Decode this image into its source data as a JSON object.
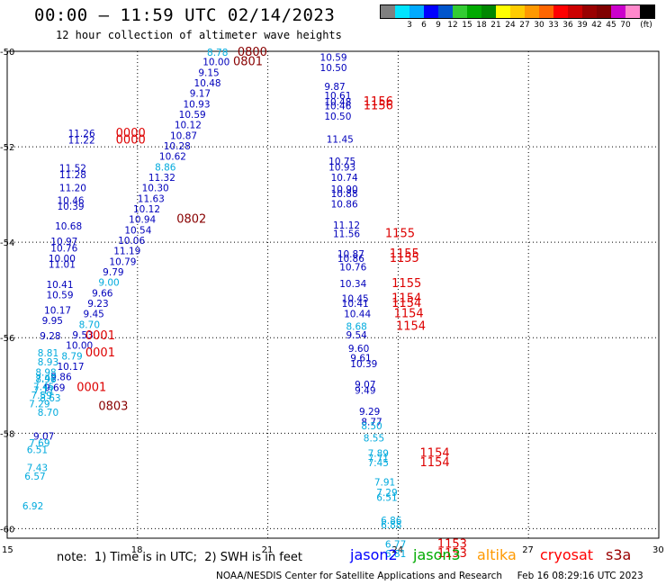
{
  "title": "00:00 – 11:59 UTC 02/14/2023",
  "subtitle": "12 hour collection of altimeter wave heights",
  "legend": {
    "unit": "(ft)",
    "colors": [
      "#808080",
      "#00e5ff",
      "#00aaff",
      "#0000ff",
      "#0055cc",
      "#33cc33",
      "#00aa00",
      "#008800",
      "#ffff00",
      "#ffcc00",
      "#ff9900",
      "#ff6600",
      "#ff0000",
      "#cc0000",
      "#990000",
      "#800000",
      "#cc00cc",
      "#ff88cc",
      "#000000"
    ],
    "labels": [
      "3",
      "6",
      "9",
      "12",
      "15",
      "18",
      "21",
      "24",
      "27",
      "30",
      "33",
      "36",
      "39",
      "42",
      "45",
      "70"
    ]
  },
  "footnote": "note:  1) Time is in UTC;  2) SWH is in feet",
  "satellites": [
    {
      "name": "jason2",
      "color": "#0000ff"
    },
    {
      "name": "jason3",
      "color": "#00aa00"
    },
    {
      "name": "altika",
      "color": "#ff9900"
    },
    {
      "name": "cryosat",
      "color": "#ff0000"
    },
    {
      "name": "s3a",
      "color": "#990000"
    }
  ],
  "credit": "NOAA/NESDIS Center for Satellite Applications and Research     Feb 16 08:29:16 UTC 2023",
  "chart_data": {
    "type": "scatter",
    "x_ticks": [
      15,
      18,
      21,
      24,
      27,
      30
    ],
    "y_ticks": [
      -50,
      -52,
      -54,
      -56,
      -58,
      -60
    ],
    "xlim": [
      15,
      30
    ],
    "ylim": [
      -60.2,
      -50
    ],
    "grid": true,
    "colors": {
      "lb": "#00aadd",
      "b": "#0000bb",
      "r": "#dd0000",
      "dr": "#880000"
    },
    "points": [
      {
        "lon": 19.6,
        "lat": -50.02,
        "label": "8.78",
        "c": "lb"
      },
      {
        "lon": 20.3,
        "lat": -50.02,
        "label": "0800",
        "c": "dr"
      },
      {
        "lon": 19.5,
        "lat": -50.22,
        "label": "10.00",
        "c": "b"
      },
      {
        "lon": 20.2,
        "lat": -50.22,
        "label": "0801",
        "c": "dr"
      },
      {
        "lon": 19.4,
        "lat": -50.44,
        "label": "9.15",
        "c": "b"
      },
      {
        "lon": 19.3,
        "lat": -50.66,
        "label": "10.48",
        "c": "b"
      },
      {
        "lon": 19.2,
        "lat": -50.88,
        "label": "9.17",
        "c": "b"
      },
      {
        "lon": 19.05,
        "lat": -51.1,
        "label": "10.93",
        "c": "b"
      },
      {
        "lon": 18.95,
        "lat": -51.32,
        "label": "10.59",
        "c": "b"
      },
      {
        "lon": 18.85,
        "lat": -51.54,
        "label": "10.12",
        "c": "b"
      },
      {
        "lon": 18.75,
        "lat": -51.76,
        "label": "10.87",
        "c": "b"
      },
      {
        "lon": 18.6,
        "lat": -51.98,
        "label": "10.28",
        "c": "b"
      },
      {
        "lon": 18.5,
        "lat": -52.2,
        "label": "10.62",
        "c": "b"
      },
      {
        "lon": 18.4,
        "lat": -52.42,
        "label": "8.86",
        "c": "lb"
      },
      {
        "lon": 18.25,
        "lat": -52.64,
        "label": "11.32",
        "c": "b"
      },
      {
        "lon": 18.1,
        "lat": -52.86,
        "label": "10.30",
        "c": "b"
      },
      {
        "lon": 18.0,
        "lat": -53.08,
        "label": "11.63",
        "c": "b"
      },
      {
        "lon": 17.9,
        "lat": -53.3,
        "label": "10.12",
        "c": "b"
      },
      {
        "lon": 17.8,
        "lat": -53.52,
        "label": "10.94",
        "c": "b"
      },
      {
        "lon": 18.9,
        "lat": -53.52,
        "label": "0802",
        "c": "dr"
      },
      {
        "lon": 17.7,
        "lat": -53.74,
        "label": "10.54",
        "c": "b"
      },
      {
        "lon": 17.55,
        "lat": -53.96,
        "label": "10.06",
        "c": "b"
      },
      {
        "lon": 17.45,
        "lat": -54.18,
        "label": "11.19",
        "c": "b"
      },
      {
        "lon": 17.35,
        "lat": -54.4,
        "label": "10.79",
        "c": "b"
      },
      {
        "lon": 17.2,
        "lat": -54.62,
        "label": "9.79",
        "c": "b"
      },
      {
        "lon": 17.1,
        "lat": -54.84,
        "label": "9.00",
        "c": "lb"
      },
      {
        "lon": 16.95,
        "lat": -55.06,
        "label": "9.66",
        "c": "b"
      },
      {
        "lon": 16.85,
        "lat": -55.28,
        "label": "9.23",
        "c": "b"
      },
      {
        "lon": 16.75,
        "lat": -55.5,
        "label": "9.45",
        "c": "b"
      },
      {
        "lon": 16.65,
        "lat": -55.72,
        "label": "8.70",
        "c": "lb"
      },
      {
        "lon": 16.5,
        "lat": -55.94,
        "label": "9.53",
        "c": "b"
      },
      {
        "lon": 16.35,
        "lat": -56.16,
        "label": "10.00",
        "c": "b"
      },
      {
        "lon": 16.25,
        "lat": -56.38,
        "label": "8.79",
        "c": "lb"
      },
      {
        "lon": 16.15,
        "lat": -56.6,
        "label": "10.17",
        "c": "b"
      },
      {
        "lon": 16.0,
        "lat": -56.82,
        "label": "9.86",
        "c": "b"
      },
      {
        "lon": 15.85,
        "lat": -57.04,
        "label": "9.69",
        "c": "b"
      },
      {
        "lon": 15.75,
        "lat": -57.26,
        "label": "8.63",
        "c": "lb"
      },
      {
        "lon": 15.65,
        "lat": -56.84,
        "label": "7.42",
        "c": "lb"
      },
      {
        "lon": 15.6,
        "lat": -57.02,
        "label": "7.45",
        "c": "lb"
      },
      {
        "lon": 15.55,
        "lat": -57.2,
        "label": "7.59",
        "c": "lb"
      },
      {
        "lon": 15.5,
        "lat": -57.38,
        "label": "7.29",
        "c": "lb"
      },
      {
        "lon": 15.7,
        "lat": -57.56,
        "label": "8.70",
        "c": "lb"
      },
      {
        "lon": 15.6,
        "lat": -58.06,
        "label": "9.07",
        "c": "b"
      },
      {
        "lon": 15.5,
        "lat": -58.2,
        "label": "7.69",
        "c": "lb"
      },
      {
        "lon": 15.45,
        "lat": -58.34,
        "label": "6.51",
        "c": "lb"
      },
      {
        "lon": 15.45,
        "lat": -58.72,
        "label": "7.43",
        "c": "lb"
      },
      {
        "lon": 15.4,
        "lat": -58.9,
        "label": "6.57",
        "c": "lb"
      },
      {
        "lon": 15.35,
        "lat": -59.52,
        "label": "6.92",
        "c": "lb"
      },
      {
        "lon": 16.4,
        "lat": -51.72,
        "label": "11.26",
        "c": "b"
      },
      {
        "lon": 17.5,
        "lat": -51.72,
        "label": "0000",
        "c": "r"
      },
      {
        "lon": 16.4,
        "lat": -51.86,
        "label": "11.22",
        "c": "b"
      },
      {
        "lon": 17.5,
        "lat": -51.86,
        "label": "0000",
        "c": "r"
      },
      {
        "lon": 16.2,
        "lat": -52.44,
        "label": "11.52",
        "c": "b"
      },
      {
        "lon": 16.2,
        "lat": -52.58,
        "label": "11.28",
        "c": "b"
      },
      {
        "lon": 16.2,
        "lat": -52.86,
        "label": "11.20",
        "c": "b"
      },
      {
        "lon": 16.15,
        "lat": -53.12,
        "label": "10.46",
        "c": "b"
      },
      {
        "lon": 16.15,
        "lat": -53.24,
        "label": "10.39",
        "c": "b"
      },
      {
        "lon": 16.1,
        "lat": -53.66,
        "label": "10.68",
        "c": "b"
      },
      {
        "lon": 16.0,
        "lat": -53.98,
        "label": "10.97",
        "c": "b"
      },
      {
        "lon": 16.0,
        "lat": -54.12,
        "label": "10.76",
        "c": "b"
      },
      {
        "lon": 15.95,
        "lat": -54.34,
        "label": "10.00",
        "c": "b"
      },
      {
        "lon": 15.95,
        "lat": -54.46,
        "label": "11.01",
        "c": "b"
      },
      {
        "lon": 15.9,
        "lat": -54.88,
        "label": "10.41",
        "c": "b"
      },
      {
        "lon": 15.9,
        "lat": -55.1,
        "label": "10.59",
        "c": "b"
      },
      {
        "lon": 15.85,
        "lat": -55.42,
        "label": "10.17",
        "c": "b"
      },
      {
        "lon": 15.8,
        "lat": -55.64,
        "label": "9.95",
        "c": "b"
      },
      {
        "lon": 15.75,
        "lat": -55.96,
        "label": "9.28",
        "c": "b"
      },
      {
        "lon": 16.8,
        "lat": -55.96,
        "label": "0001",
        "c": "r"
      },
      {
        "lon": 15.7,
        "lat": -56.32,
        "label": "8.81",
        "c": "lb"
      },
      {
        "lon": 16.8,
        "lat": -56.32,
        "label": "0001",
        "c": "r"
      },
      {
        "lon": 15.7,
        "lat": -56.5,
        "label": "8.93",
        "c": "lb"
      },
      {
        "lon": 15.65,
        "lat": -56.72,
        "label": "8.98",
        "c": "lb"
      },
      {
        "lon": 15.65,
        "lat": -56.86,
        "label": "8.96",
        "c": "lb"
      },
      {
        "lon": 15.6,
        "lat": -57.1,
        "label": "7.11",
        "c": "lb"
      },
      {
        "lon": 16.6,
        "lat": -57.04,
        "label": "0001",
        "c": "r"
      },
      {
        "lon": 17.1,
        "lat": -57.44,
        "label": "0803",
        "c": "dr"
      },
      {
        "lon": 22.2,
        "lat": -50.12,
        "label": "10.59",
        "c": "b"
      },
      {
        "lon": 22.2,
        "lat": -50.34,
        "label": "10.50",
        "c": "b"
      },
      {
        "lon": 22.3,
        "lat": -50.74,
        "label": "9.87",
        "c": "b"
      },
      {
        "lon": 22.3,
        "lat": -50.92,
        "label": "10.61",
        "c": "b"
      },
      {
        "lon": 22.3,
        "lat": -51.06,
        "label": "10.48",
        "c": "b"
      },
      {
        "lon": 23.2,
        "lat": -51.06,
        "label": "1156",
        "c": "r"
      },
      {
        "lon": 22.3,
        "lat": -51.14,
        "label": "10.46",
        "c": "b"
      },
      {
        "lon": 23.2,
        "lat": -51.14,
        "label": "1156",
        "c": "r"
      },
      {
        "lon": 22.3,
        "lat": -51.36,
        "label": "10.50",
        "c": "b"
      },
      {
        "lon": 22.35,
        "lat": -51.84,
        "label": "11.45",
        "c": "b"
      },
      {
        "lon": 22.4,
        "lat": -52.3,
        "label": "10.75",
        "c": "b"
      },
      {
        "lon": 22.4,
        "lat": -52.42,
        "label": "10.93",
        "c": "b"
      },
      {
        "lon": 22.45,
        "lat": -52.64,
        "label": "10.74",
        "c": "b"
      },
      {
        "lon": 22.45,
        "lat": -52.88,
        "label": "10.90",
        "c": "b"
      },
      {
        "lon": 22.45,
        "lat": -52.98,
        "label": "10.88",
        "c": "b"
      },
      {
        "lon": 22.45,
        "lat": -53.2,
        "label": "10.86",
        "c": "b"
      },
      {
        "lon": 22.5,
        "lat": -53.64,
        "label": "11.12",
        "c": "b"
      },
      {
        "lon": 22.5,
        "lat": -53.82,
        "label": "11.56",
        "c": "b"
      },
      {
        "lon": 23.7,
        "lat": -53.82,
        "label": "1155",
        "c": "r"
      },
      {
        "lon": 22.6,
        "lat": -54.24,
        "label": "10.87",
        "c": "b"
      },
      {
        "lon": 23.8,
        "lat": -54.24,
        "label": "1155",
        "c": "r"
      },
      {
        "lon": 22.6,
        "lat": -54.34,
        "label": "10.86",
        "c": "b"
      },
      {
        "lon": 23.8,
        "lat": -54.34,
        "label": "1155",
        "c": "r"
      },
      {
        "lon": 22.65,
        "lat": -54.52,
        "label": "10.76",
        "c": "b"
      },
      {
        "lon": 22.65,
        "lat": -54.86,
        "label": "10.34",
        "c": "b"
      },
      {
        "lon": 23.85,
        "lat": -54.86,
        "label": "1155",
        "c": "r"
      },
      {
        "lon": 22.7,
        "lat": -55.18,
        "label": "10.45",
        "c": "b"
      },
      {
        "lon": 23.85,
        "lat": -55.18,
        "label": "1154",
        "c": "r"
      },
      {
        "lon": 22.7,
        "lat": -55.28,
        "label": "10.41",
        "c": "b"
      },
      {
        "lon": 23.85,
        "lat": -55.28,
        "label": "1154",
        "c": "r"
      },
      {
        "lon": 22.75,
        "lat": -55.5,
        "label": "10.44",
        "c": "b"
      },
      {
        "lon": 23.9,
        "lat": -55.5,
        "label": "1154",
        "c": "r"
      },
      {
        "lon": 22.8,
        "lat": -55.76,
        "label": "8.68",
        "c": "lb"
      },
      {
        "lon": 23.95,
        "lat": -55.76,
        "label": "1154",
        "c": "r"
      },
      {
        "lon": 22.8,
        "lat": -55.94,
        "label": "9.54",
        "c": "b"
      },
      {
        "lon": 22.85,
        "lat": -56.22,
        "label": "9.60",
        "c": "b"
      },
      {
        "lon": 22.9,
        "lat": -56.42,
        "label": "9.61",
        "c": "b"
      },
      {
        "lon": 22.9,
        "lat": -56.54,
        "label": "10.39",
        "c": "b"
      },
      {
        "lon": 23.0,
        "lat": -56.98,
        "label": "9.07",
        "c": "b"
      },
      {
        "lon": 23.0,
        "lat": -57.1,
        "label": "9.49",
        "c": "b"
      },
      {
        "lon": 23.1,
        "lat": -57.54,
        "label": "9.29",
        "c": "b"
      },
      {
        "lon": 23.15,
        "lat": -57.76,
        "label": "8.77",
        "c": "b"
      },
      {
        "lon": 23.15,
        "lat": -57.84,
        "label": "8.50",
        "c": "lb"
      },
      {
        "lon": 23.2,
        "lat": -58.1,
        "label": "8.55",
        "c": "lb"
      },
      {
        "lon": 23.3,
        "lat": -58.42,
        "label": "7.89",
        "c": "lb"
      },
      {
        "lon": 24.5,
        "lat": -58.42,
        "label": "1154",
        "c": "r"
      },
      {
        "lon": 23.3,
        "lat": -58.52,
        "label": "7.71",
        "c": "lb"
      },
      {
        "lon": 23.3,
        "lat": -58.62,
        "label": "7.45",
        "c": "lb"
      },
      {
        "lon": 24.5,
        "lat": -58.62,
        "label": "1154",
        "c": "r"
      },
      {
        "lon": 23.45,
        "lat": -59.02,
        "label": "7.91",
        "c": "lb"
      },
      {
        "lon": 23.5,
        "lat": -59.24,
        "label": "7.29",
        "c": "lb"
      },
      {
        "lon": 23.5,
        "lat": -59.34,
        "label": "6.51",
        "c": "lb"
      },
      {
        "lon": 23.6,
        "lat": -59.82,
        "label": "6.86",
        "c": "lb"
      },
      {
        "lon": 23.6,
        "lat": -59.92,
        "label": "6.88",
        "c": "lb"
      },
      {
        "lon": 23.7,
        "lat": -60.32,
        "label": "6.77",
        "c": "lb"
      },
      {
        "lon": 24.9,
        "lat": -60.32,
        "label": "1153",
        "c": "r"
      },
      {
        "lon": 23.7,
        "lat": -60.52,
        "label": "6.81",
        "c": "lb"
      },
      {
        "lon": 24.9,
        "lat": -60.52,
        "label": "1153",
        "c": "r"
      }
    ]
  }
}
